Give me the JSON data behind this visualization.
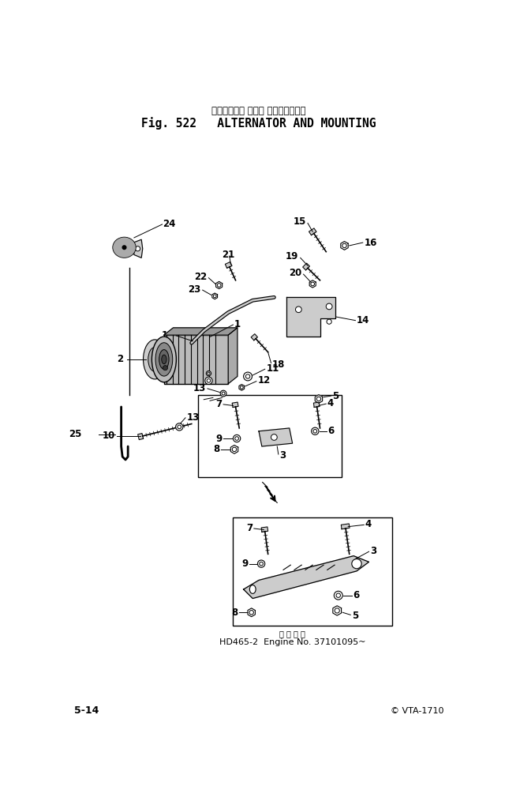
{
  "title_japanese": "オルタネータ および マウンティング",
  "title_english": "Fig. 522   ALTERNATOR AND MOUNTING",
  "footer_left": "5-14",
  "footer_right": "© VTA-1710",
  "caption_label": "適 用 号 等",
  "caption": "HD465-2  Engine No. 37101095~",
  "bg_color": "#ffffff",
  "fg_color": "#000000"
}
